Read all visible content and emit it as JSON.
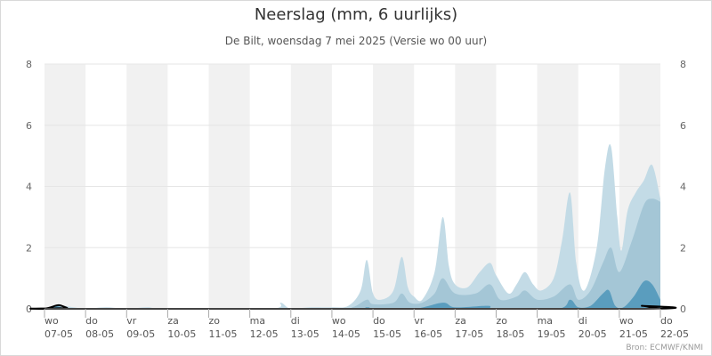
{
  "title": "Neerslag (mm, 6 uurlijks)",
  "subtitle": "De Bilt, woensdag 7 mei 2025 (Versie wo 00 uur)",
  "credits": "Bron: ECMWF/KNMI",
  "colors": {
    "band_light": "#c3dbe6",
    "band_mid": "#a4c6d6",
    "band_dark": "#5a9dbe",
    "median": "#000000",
    "shade": "#f1f1f1",
    "grid": "#e6e6e6"
  },
  "chart_data": {
    "type": "area",
    "title": "Neerslag (mm, 6 uurlijks)",
    "subtitle": "De Bilt, woensdag 7 mei 2025 (Versie wo 00 uur)",
    "ylim": [
      0,
      8
    ],
    "yticks": [
      "0",
      "2",
      "4",
      "6",
      "8"
    ],
    "x_day_start": 0,
    "x_day_end": 15,
    "shaded_days": [
      0,
      2,
      4,
      6,
      8,
      10,
      12,
      14
    ],
    "xticks": [
      {
        "day": 0,
        "line1": "wo",
        "line2": "07-05"
      },
      {
        "day": 1,
        "line1": "do",
        "line2": "08-05"
      },
      {
        "day": 2,
        "line1": "vr",
        "line2": "09-05"
      },
      {
        "day": 3,
        "line1": "za",
        "line2": "10-05"
      },
      {
        "day": 4,
        "line1": "zo",
        "line2": "11-05"
      },
      {
        "day": 5,
        "line1": "ma",
        "line2": "12-05"
      },
      {
        "day": 6,
        "line1": "di",
        "line2": "13-05"
      },
      {
        "day": 7,
        "line1": "wo",
        "line2": "14-05"
      },
      {
        "day": 8,
        "line1": "do",
        "line2": "15-05"
      },
      {
        "day": 9,
        "line1": "vr",
        "line2": "16-05"
      },
      {
        "day": 10,
        "line1": "za",
        "line2": "17-05"
      },
      {
        "day": 11,
        "line1": "zo",
        "line2": "18-05"
      },
      {
        "day": 12,
        "line1": "ma",
        "line2": "19-05"
      },
      {
        "day": 13,
        "line1": "di",
        "line2": "20-05"
      },
      {
        "day": 14,
        "line1": "wo",
        "line2": "21-05"
      },
      {
        "day": 15,
        "line1": "do",
        "line2": "22-05"
      }
    ],
    "series": [
      {
        "color": "#c3dbe6",
        "points": [
          [
            0,
            0
          ],
          [
            0.3,
            0.12
          ],
          [
            0.7,
            0.05
          ],
          [
            1,
            0
          ],
          [
            1.5,
            0.05
          ],
          [
            2,
            0
          ],
          [
            2.5,
            0.05
          ],
          [
            3,
            0
          ],
          [
            5.5,
            0
          ],
          [
            5.75,
            0.2
          ],
          [
            6,
            0
          ],
          [
            6.5,
            0.05
          ],
          [
            7,
            0.05
          ],
          [
            7.4,
            0.1
          ],
          [
            7.7,
            0.6
          ],
          [
            7.85,
            1.6
          ],
          [
            8,
            0.5
          ],
          [
            8.2,
            0.3
          ],
          [
            8.5,
            0.6
          ],
          [
            8.7,
            1.7
          ],
          [
            8.85,
            0.7
          ],
          [
            9,
            0.4
          ],
          [
            9.2,
            0.3
          ],
          [
            9.5,
            1.2
          ],
          [
            9.7,
            3.0
          ],
          [
            9.85,
            1.4
          ],
          [
            10,
            0.8
          ],
          [
            10.3,
            0.7
          ],
          [
            10.6,
            1.2
          ],
          [
            10.85,
            1.5
          ],
          [
            11,
            1.1
          ],
          [
            11.3,
            0.5
          ],
          [
            11.5,
            0.8
          ],
          [
            11.7,
            1.2
          ],
          [
            11.9,
            0.8
          ],
          [
            12.1,
            0.6
          ],
          [
            12.4,
            1.0
          ],
          [
            12.6,
            2.2
          ],
          [
            12.8,
            3.8
          ],
          [
            12.95,
            1.5
          ],
          [
            13.15,
            0.6
          ],
          [
            13.45,
            2.0
          ],
          [
            13.65,
            4.6
          ],
          [
            13.8,
            5.3
          ],
          [
            13.95,
            3.0
          ],
          [
            14.05,
            1.9
          ],
          [
            14.2,
            3.2
          ],
          [
            14.4,
            3.8
          ],
          [
            14.6,
            4.2
          ],
          [
            14.8,
            4.7
          ],
          [
            15,
            3.6
          ]
        ]
      },
      {
        "color": "#a4c6d6",
        "points": [
          [
            0,
            0
          ],
          [
            0.3,
            0.08
          ],
          [
            0.6,
            0
          ],
          [
            7,
            0
          ],
          [
            7.5,
            0.05
          ],
          [
            7.85,
            0.3
          ],
          [
            8,
            0.15
          ],
          [
            8.5,
            0.2
          ],
          [
            8.7,
            0.5
          ],
          [
            8.9,
            0.2
          ],
          [
            9.2,
            0.2
          ],
          [
            9.5,
            0.5
          ],
          [
            9.7,
            1.0
          ],
          [
            10,
            0.5
          ],
          [
            10.5,
            0.5
          ],
          [
            10.85,
            0.8
          ],
          [
            11.1,
            0.3
          ],
          [
            11.5,
            0.4
          ],
          [
            11.7,
            0.6
          ],
          [
            12,
            0.3
          ],
          [
            12.4,
            0.4
          ],
          [
            12.8,
            0.8
          ],
          [
            13,
            0.3
          ],
          [
            13.3,
            0.6
          ],
          [
            13.6,
            1.5
          ],
          [
            13.8,
            2.0
          ],
          [
            14,
            1.2
          ],
          [
            14.3,
            2.2
          ],
          [
            14.6,
            3.4
          ],
          [
            14.8,
            3.6
          ],
          [
            15,
            3.5
          ]
        ]
      },
      {
        "color": "#5a9dbe",
        "points": [
          [
            0,
            0
          ],
          [
            0.25,
            0.1
          ],
          [
            0.5,
            0.02
          ],
          [
            0.7,
            0
          ],
          [
            7,
            0
          ],
          [
            7.85,
            0.05
          ],
          [
            8,
            0
          ],
          [
            9,
            0
          ],
          [
            9.7,
            0.2
          ],
          [
            10,
            0.05
          ],
          [
            10.8,
            0.1
          ],
          [
            11,
            0
          ],
          [
            12.5,
            0
          ],
          [
            12.8,
            0.3
          ],
          [
            13,
            0.05
          ],
          [
            13.3,
            0.1
          ],
          [
            13.6,
            0.5
          ],
          [
            13.75,
            0.6
          ],
          [
            13.9,
            0.1
          ],
          [
            14.1,
            0.05
          ],
          [
            14.35,
            0.4
          ],
          [
            14.6,
            0.9
          ],
          [
            14.8,
            0.8
          ],
          [
            15,
            0.3
          ]
        ]
      }
    ],
    "median": [
      [
        0,
        0
      ],
      [
        0.15,
        0.05
      ],
      [
        0.35,
        0.12
      ],
      [
        0.55,
        0.03
      ],
      [
        0.7,
        0
      ],
      [
        14.3,
        0
      ],
      [
        14.55,
        0.1
      ],
      [
        14.75,
        0.05
      ],
      [
        15,
        0
      ]
    ]
  }
}
